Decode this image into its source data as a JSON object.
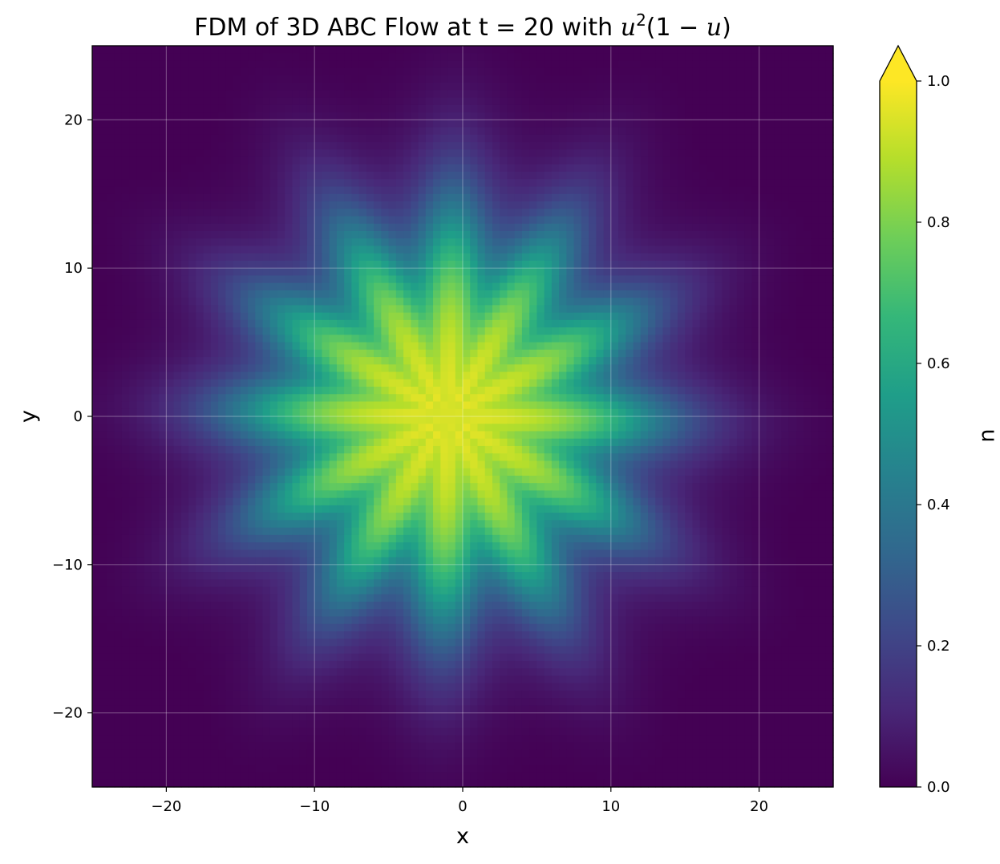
{
  "chart_data": {
    "type": "heatmap",
    "title": {
      "prefix": "FDM of 3D ABC Flow at t = 20 with ",
      "var": "u",
      "sup": "2",
      "rest1": "(1 − ",
      "var2": "u",
      "rest2": ")"
    },
    "xlabel": "x",
    "ylabel": "y",
    "xlim": [
      -25,
      25
    ],
    "ylim": [
      -25,
      25
    ],
    "xticks": [
      -20,
      -10,
      0,
      10,
      20
    ],
    "yticks": [
      -20,
      -10,
      0,
      10,
      20
    ],
    "xtick_labels": [
      "−20",
      "−10",
      "0",
      "10",
      "20"
    ],
    "ytick_labels": [
      "−20",
      "−10",
      "0",
      "10",
      "20"
    ],
    "grid": true,
    "colormap": "viridis",
    "colorbar": {
      "label": "u",
      "range": [
        0.0,
        1.0
      ],
      "ticks": [
        0.0,
        0.2,
        0.4,
        0.6,
        0.8,
        1.0
      ],
      "tick_labels": [
        "0.0",
        "0.2",
        "0.4",
        "0.6",
        "0.8",
        "1.0"
      ],
      "extend": "max"
    },
    "field": {
      "description_of_values": "u(x,y) ≈ 1 inside a star-shaped front centered near (-1, 0), falling smoothly to 0 outside",
      "center": [
        -1,
        0
      ],
      "front_radius": 11.5,
      "front_width": 3.2,
      "lobes": 12,
      "lobe_amplitude": 1.6,
      "grid_cells": 100
    }
  },
  "colors": {
    "viridis": [
      "#440154",
      "#482878",
      "#3e4989",
      "#31688e",
      "#26828e",
      "#1f9e89",
      "#35b779",
      "#6ece58",
      "#b5de2b",
      "#fde725"
    ]
  }
}
